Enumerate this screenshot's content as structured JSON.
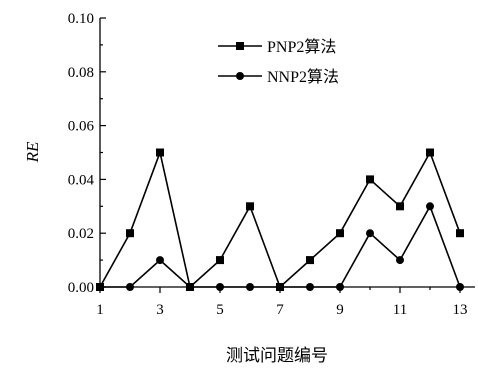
{
  "chart_data": {
    "type": "line",
    "title": "",
    "xlabel": "测试问题编号",
    "ylabel": "RE",
    "xlim": [
      1,
      13.5
    ],
    "ylim": [
      0,
      0.1
    ],
    "x": [
      1,
      2,
      3,
      4,
      5,
      6,
      7,
      8,
      9,
      10,
      11,
      12,
      13
    ],
    "x_ticks": [
      "1",
      "3",
      "5",
      "7",
      "9",
      "11",
      "13"
    ],
    "x_tick_values": [
      1,
      3,
      5,
      7,
      9,
      11,
      13
    ],
    "y_ticks": [
      "0.00",
      "0.02",
      "0.04",
      "0.06",
      "0.08",
      "0.10"
    ],
    "y_tick_values": [
      0,
      0.02,
      0.04,
      0.06,
      0.08,
      0.1
    ],
    "grid": false,
    "legend_position": "top-right",
    "series": [
      {
        "name": "PNP2算法",
        "marker": "square",
        "color": "#000000",
        "values": [
          0,
          0.02,
          0.05,
          0,
          0.01,
          0.03,
          0,
          0.01,
          0.02,
          0.04,
          0.03,
          0.05,
          0.02
        ]
      },
      {
        "name": "NNP2算法",
        "marker": "circle",
        "color": "#000000",
        "values": [
          0,
          0,
          0.01,
          0,
          0,
          0,
          0,
          0,
          0,
          0.02,
          0.01,
          0.03,
          0
        ]
      }
    ]
  }
}
